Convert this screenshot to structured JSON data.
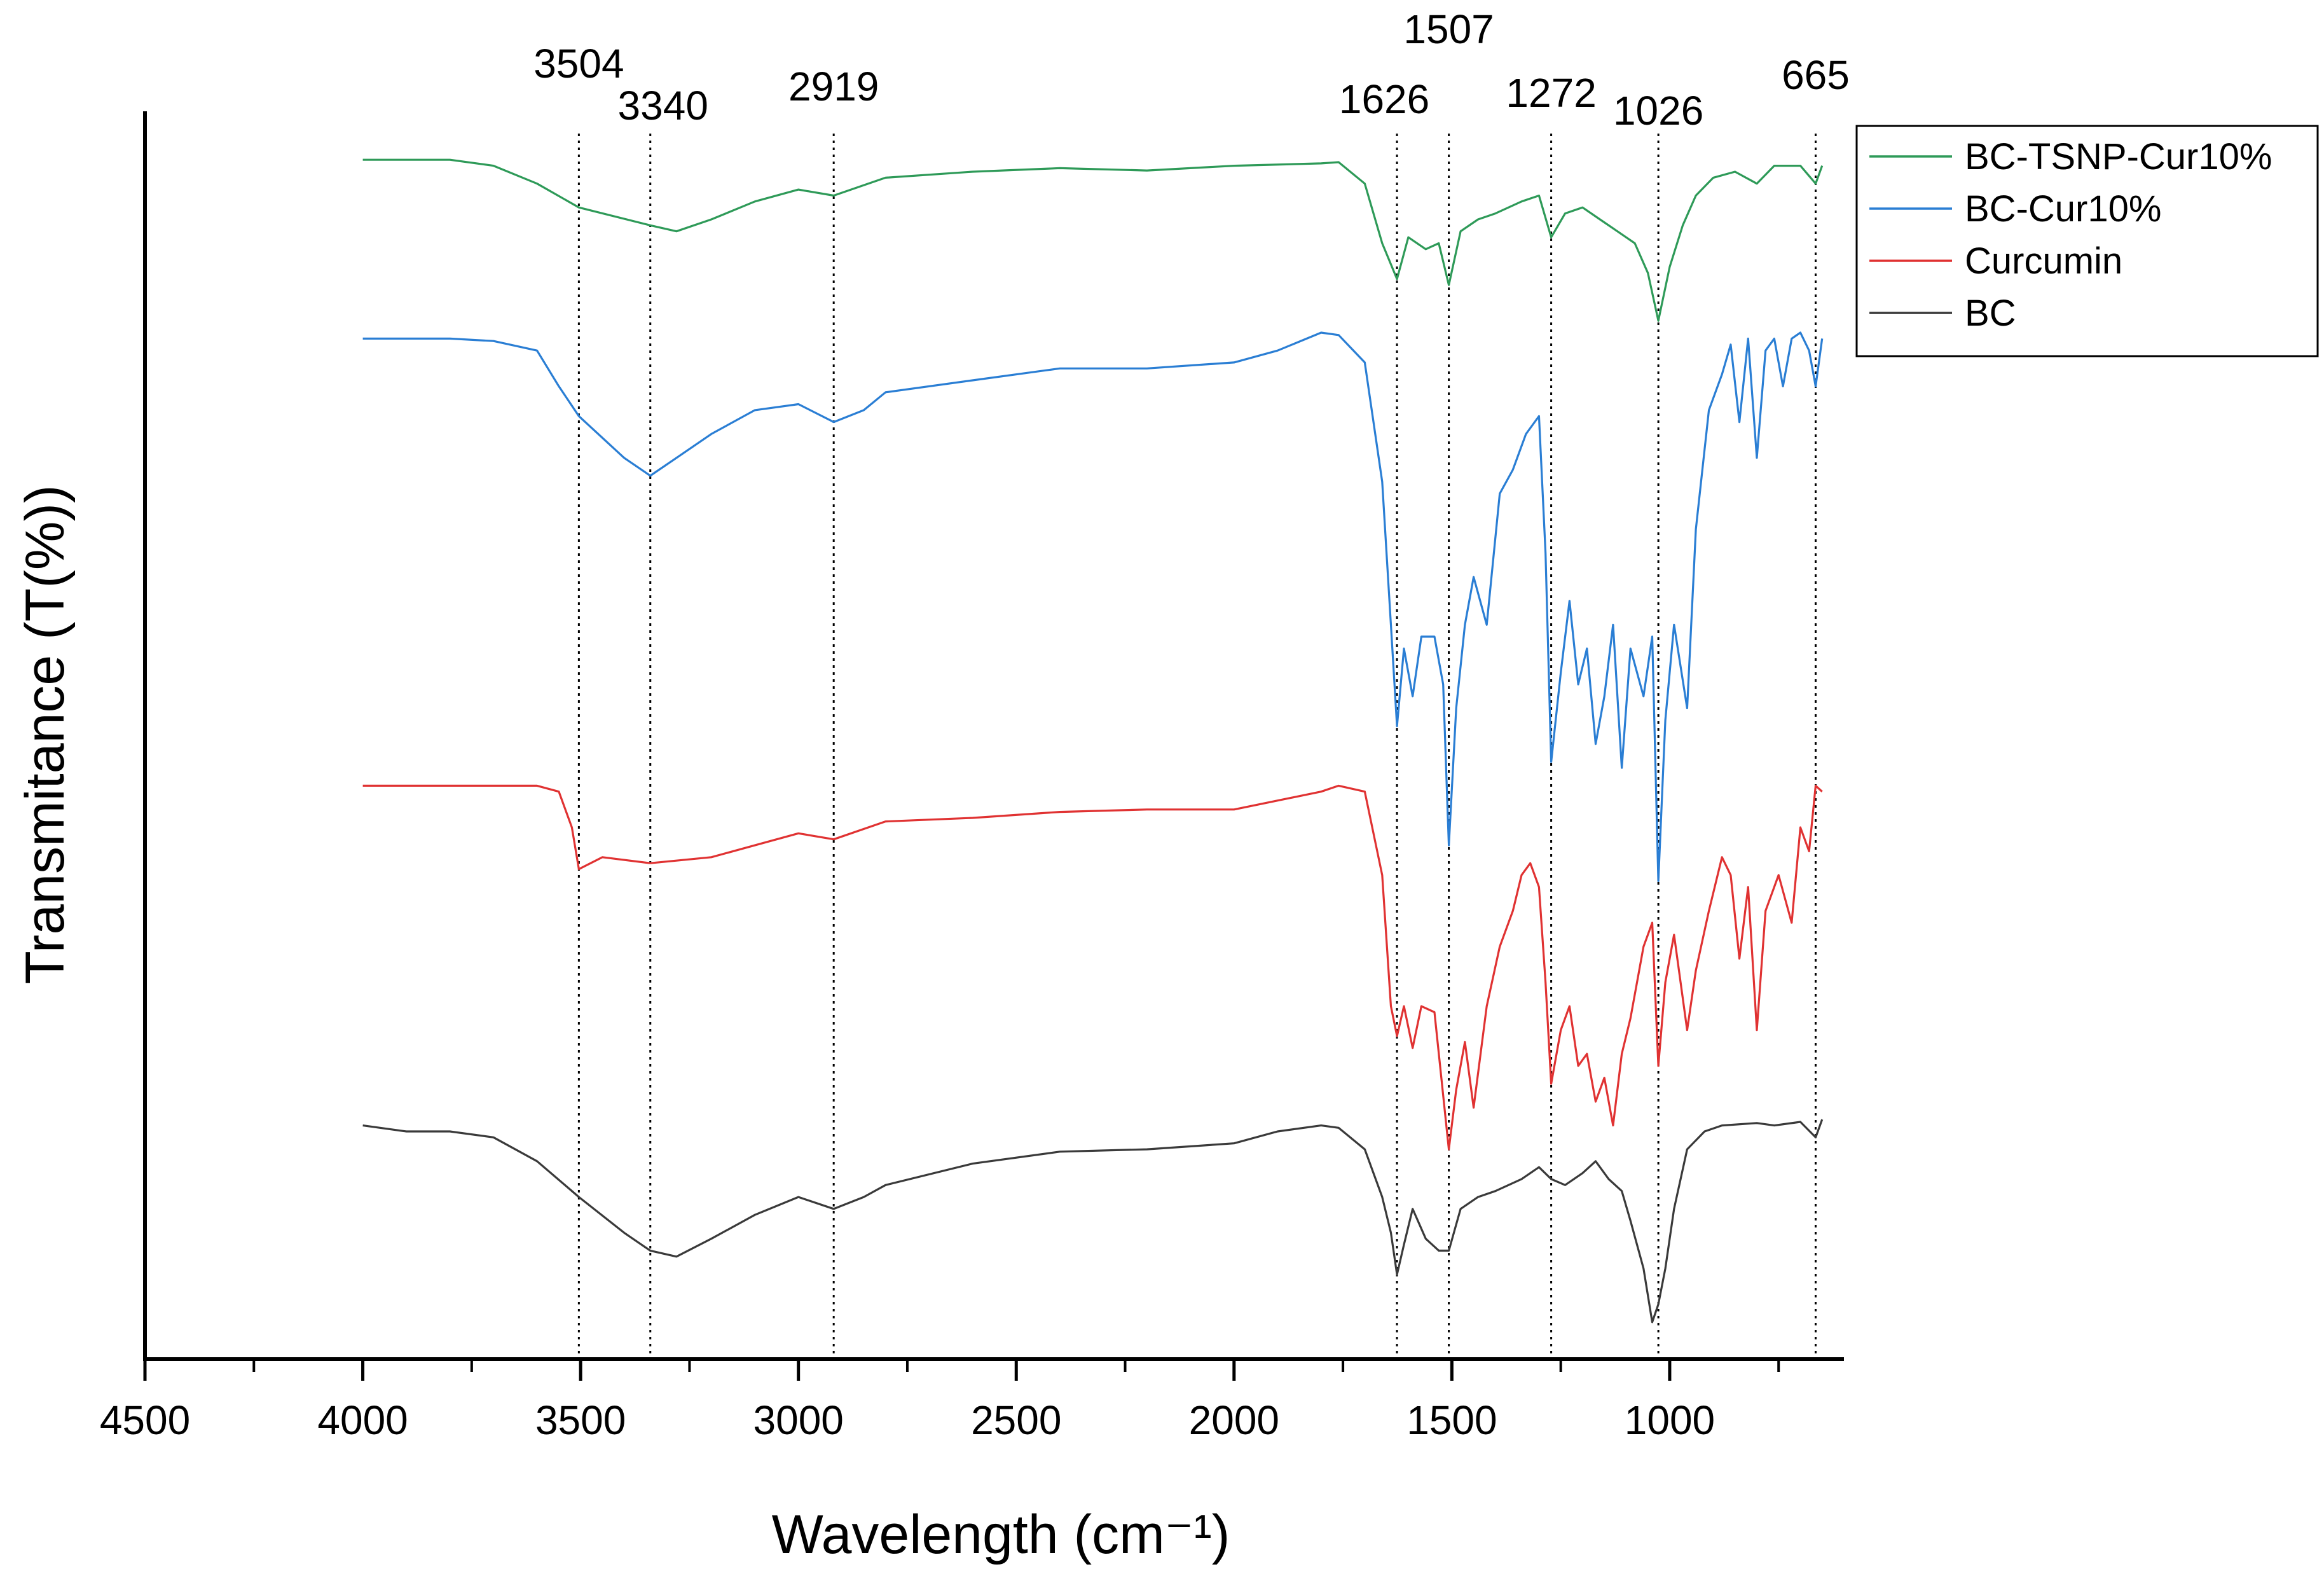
{
  "chart_data": {
    "type": "line",
    "title": "",
    "xlabel": "Wavelength (cm⁻¹)",
    "ylabel": "Transmitance (T(%))",
    "xlim": [
      4500,
      600
    ],
    "x_reversed": true,
    "y_tick_labels": false,
    "grid": false,
    "legend_position": "top-right (outside plot area)",
    "x_ticks": [
      4500,
      4000,
      3500,
      3000,
      2500,
      2000,
      1500,
      1000
    ],
    "x_tick_labels": [
      "4500",
      "4000",
      "3500",
      "3000",
      "2500",
      "2000",
      "1500",
      "1000"
    ],
    "peak_markers": [
      {
        "x": 3504,
        "label": "3504"
      },
      {
        "x": 3340,
        "label": "3340"
      },
      {
        "x": 2919,
        "label": "2919"
      },
      {
        "x": 1626,
        "label": "1626"
      },
      {
        "x": 1507,
        "label": "1507"
      },
      {
        "x": 1272,
        "label": "1272"
      },
      {
        "x": 1026,
        "label": "1026"
      },
      {
        "x": 665,
        "label": "665"
      }
    ],
    "series": [
      {
        "name": "BC-TSNP-Cur10%",
        "color": "#2e9a58",
        "points": [
          [
            4000,
            93
          ],
          [
            3800,
            93
          ],
          [
            3700,
            92.5
          ],
          [
            3600,
            91
          ],
          [
            3504,
            89
          ],
          [
            3340,
            87.5
          ],
          [
            3280,
            87
          ],
          [
            3200,
            88
          ],
          [
            3100,
            89.5
          ],
          [
            3000,
            90.5
          ],
          [
            2919,
            90
          ],
          [
            2800,
            91.5
          ],
          [
            2600,
            92
          ],
          [
            2400,
            92.3
          ],
          [
            2200,
            92.1
          ],
          [
            2000,
            92.5
          ],
          [
            1800,
            92.7
          ],
          [
            1760,
            92.8
          ],
          [
            1700,
            91
          ],
          [
            1660,
            86
          ],
          [
            1626,
            83
          ],
          [
            1600,
            86.5
          ],
          [
            1560,
            85.5
          ],
          [
            1530,
            86
          ],
          [
            1507,
            82.5
          ],
          [
            1480,
            87
          ],
          [
            1440,
            88
          ],
          [
            1400,
            88.5
          ],
          [
            1340,
            89.5
          ],
          [
            1300,
            90
          ],
          [
            1272,
            86.5
          ],
          [
            1240,
            88.5
          ],
          [
            1200,
            89
          ],
          [
            1160,
            88
          ],
          [
            1120,
            87
          ],
          [
            1080,
            86
          ],
          [
            1050,
            83.5
          ],
          [
            1026,
            79.5
          ],
          [
            1000,
            84
          ],
          [
            970,
            87.5
          ],
          [
            940,
            90
          ],
          [
            900,
            91.5
          ],
          [
            850,
            92
          ],
          [
            800,
            91
          ],
          [
            760,
            92.5
          ],
          [
            700,
            92.5
          ],
          [
            665,
            91
          ],
          [
            650,
            92.5
          ]
        ]
      },
      {
        "name": "BC-Cur10%",
        "color": "#2a7ed4",
        "points": [
          [
            4000,
            78
          ],
          [
            3800,
            78
          ],
          [
            3700,
            77.8
          ],
          [
            3600,
            77
          ],
          [
            3550,
            74
          ],
          [
            3504,
            71.5
          ],
          [
            3400,
            68
          ],
          [
            3340,
            66.5
          ],
          [
            3280,
            68
          ],
          [
            3200,
            70
          ],
          [
            3100,
            72
          ],
          [
            3000,
            72.5
          ],
          [
            2919,
            71
          ],
          [
            2850,
            72
          ],
          [
            2800,
            73.5
          ],
          [
            2600,
            74.5
          ],
          [
            2400,
            75.5
          ],
          [
            2200,
            75.5
          ],
          [
            2000,
            76
          ],
          [
            1900,
            77
          ],
          [
            1800,
            78.5
          ],
          [
            1760,
            78.3
          ],
          [
            1700,
            76
          ],
          [
            1660,
            66
          ],
          [
            1640,
            54
          ],
          [
            1626,
            45.5
          ],
          [
            1610,
            52
          ],
          [
            1590,
            48
          ],
          [
            1570,
            53
          ],
          [
            1540,
            53
          ],
          [
            1520,
            49
          ],
          [
            1507,
            35.5
          ],
          [
            1490,
            47
          ],
          [
            1470,
            54
          ],
          [
            1450,
            58
          ],
          [
            1420,
            54
          ],
          [
            1390,
            65
          ],
          [
            1360,
            67
          ],
          [
            1330,
            70
          ],
          [
            1300,
            71.5
          ],
          [
            1285,
            60
          ],
          [
            1272,
            42.5
          ],
          [
            1250,
            50
          ],
          [
            1230,
            56
          ],
          [
            1210,
            49
          ],
          [
            1190,
            52
          ],
          [
            1170,
            44
          ],
          [
            1150,
            48
          ],
          [
            1130,
            54
          ],
          [
            1110,
            42
          ],
          [
            1090,
            52
          ],
          [
            1060,
            48
          ],
          [
            1040,
            53
          ],
          [
            1026,
            32.5
          ],
          [
            1010,
            46
          ],
          [
            990,
            54
          ],
          [
            960,
            47
          ],
          [
            940,
            62
          ],
          [
            910,
            72
          ],
          [
            880,
            75
          ],
          [
            860,
            77.5
          ],
          [
            840,
            71
          ],
          [
            820,
            78
          ],
          [
            800,
            68
          ],
          [
            780,
            77
          ],
          [
            760,
            78
          ],
          [
            740,
            74
          ],
          [
            720,
            78
          ],
          [
            700,
            78.5
          ],
          [
            680,
            77
          ],
          [
            665,
            74
          ],
          [
            650,
            78
          ]
        ]
      },
      {
        "name": "Curcumin",
        "color": "#e03232",
        "points": [
          [
            4000,
            40.5
          ],
          [
            3800,
            40.5
          ],
          [
            3600,
            40.5
          ],
          [
            3550,
            40
          ],
          [
            3520,
            37
          ],
          [
            3504,
            33.5
          ],
          [
            3450,
            34.5
          ],
          [
            3340,
            34
          ],
          [
            3200,
            34.5
          ],
          [
            3100,
            35.5
          ],
          [
            3000,
            36.5
          ],
          [
            2919,
            36
          ],
          [
            2800,
            37.5
          ],
          [
            2600,
            37.8
          ],
          [
            2400,
            38.3
          ],
          [
            2200,
            38.5
          ],
          [
            2000,
            38.5
          ],
          [
            1800,
            40
          ],
          [
            1760,
            40.5
          ],
          [
            1700,
            40
          ],
          [
            1660,
            33
          ],
          [
            1640,
            22
          ],
          [
            1626,
            19.5
          ],
          [
            1610,
            22
          ],
          [
            1590,
            18.5
          ],
          [
            1570,
            22
          ],
          [
            1540,
            21.5
          ],
          [
            1507,
            10
          ],
          [
            1490,
            15
          ],
          [
            1470,
            19
          ],
          [
            1450,
            13.5
          ],
          [
            1420,
            22
          ],
          [
            1390,
            27
          ],
          [
            1360,
            30
          ],
          [
            1340,
            33
          ],
          [
            1320,
            34
          ],
          [
            1300,
            32
          ],
          [
            1285,
            24
          ],
          [
            1272,
            15.5
          ],
          [
            1250,
            20
          ],
          [
            1230,
            22
          ],
          [
            1210,
            17
          ],
          [
            1190,
            18
          ],
          [
            1170,
            14
          ],
          [
            1150,
            16
          ],
          [
            1130,
            12
          ],
          [
            1110,
            18
          ],
          [
            1090,
            21
          ],
          [
            1060,
            27
          ],
          [
            1040,
            29
          ],
          [
            1026,
            17
          ],
          [
            1010,
            24
          ],
          [
            990,
            28
          ],
          [
            960,
            20
          ],
          [
            940,
            25
          ],
          [
            910,
            30
          ],
          [
            880,
            34.5
          ],
          [
            860,
            33
          ],
          [
            840,
            26
          ],
          [
            820,
            32
          ],
          [
            800,
            20
          ],
          [
            780,
            30
          ],
          [
            750,
            33
          ],
          [
            720,
            29
          ],
          [
            700,
            37
          ],
          [
            680,
            35
          ],
          [
            665,
            40.5
          ],
          [
            650,
            40
          ]
        ]
      },
      {
        "name": "BC",
        "color": "#3a3a3a",
        "points": [
          [
            4000,
            12
          ],
          [
            3900,
            11.5
          ],
          [
            3800,
            11.5
          ],
          [
            3700,
            11
          ],
          [
            3600,
            9
          ],
          [
            3504,
            6
          ],
          [
            3400,
            3
          ],
          [
            3340,
            1.5
          ],
          [
            3280,
            1
          ],
          [
            3200,
            2.5
          ],
          [
            3100,
            4.5
          ],
          [
            3000,
            6
          ],
          [
            2919,
            5
          ],
          [
            2850,
            6
          ],
          [
            2800,
            7
          ],
          [
            2600,
            8.8
          ],
          [
            2400,
            9.8
          ],
          [
            2200,
            10
          ],
          [
            2000,
            10.5
          ],
          [
            1900,
            11.5
          ],
          [
            1800,
            12
          ],
          [
            1760,
            11.8
          ],
          [
            1700,
            10
          ],
          [
            1660,
            6
          ],
          [
            1640,
            3
          ],
          [
            1626,
            -0.5
          ],
          [
            1610,
            2
          ],
          [
            1590,
            5
          ],
          [
            1560,
            2.5
          ],
          [
            1530,
            1.5
          ],
          [
            1507,
            1.5
          ],
          [
            1480,
            5
          ],
          [
            1440,
            6
          ],
          [
            1400,
            6.5
          ],
          [
            1340,
            7.5
          ],
          [
            1300,
            8.5
          ],
          [
            1272,
            7.5
          ],
          [
            1240,
            7
          ],
          [
            1200,
            8
          ],
          [
            1170,
            9
          ],
          [
            1140,
            7.5
          ],
          [
            1110,
            6.5
          ],
          [
            1090,
            4
          ],
          [
            1060,
            0
          ],
          [
            1040,
            -4.5
          ],
          [
            1026,
            -3
          ],
          [
            1010,
            0
          ],
          [
            990,
            5
          ],
          [
            960,
            10
          ],
          [
            920,
            11.5
          ],
          [
            880,
            12
          ],
          [
            800,
            12.2
          ],
          [
            760,
            12
          ],
          [
            700,
            12.3
          ],
          [
            665,
            11
          ],
          [
            650,
            12.5
          ]
        ]
      }
    ]
  }
}
